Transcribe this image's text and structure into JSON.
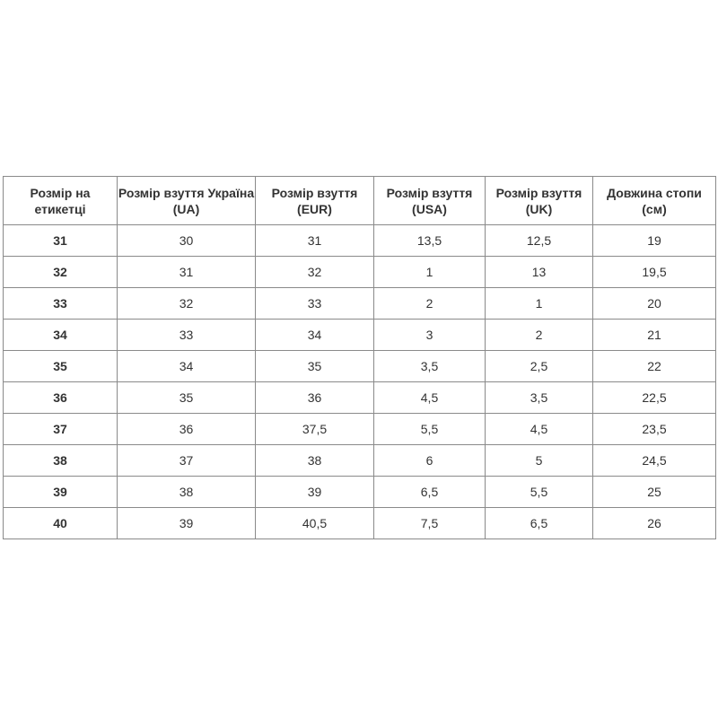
{
  "headers": [
    "Розмір на етикетці",
    "Розмір взуття Україна (UA)",
    "Розмір взуття (EUR)",
    "Розмір взуття (USA)",
    "Розмір взуття (UK)",
    "Довжина стопи (см)"
  ],
  "rows": [
    [
      "31",
      "30",
      "31",
      "13,5",
      "12,5",
      "19"
    ],
    [
      "32",
      "31",
      "32",
      "1",
      "13",
      "19,5"
    ],
    [
      "33",
      "32",
      "33",
      "2",
      "1",
      "20"
    ],
    [
      "34",
      "33",
      "34",
      "3",
      "2",
      "21"
    ],
    [
      "35",
      "34",
      "35",
      "3,5",
      "2,5",
      "22"
    ],
    [
      "36",
      "35",
      "36",
      "4,5",
      "3,5",
      "22,5"
    ],
    [
      "37",
      "36",
      "37,5",
      "5,5",
      "4,5",
      "23,5"
    ],
    [
      "38",
      "37",
      "38",
      "6",
      "5",
      "24,5"
    ],
    [
      "39",
      "38",
      "39",
      "6,5",
      "5,5",
      "25"
    ],
    [
      "40",
      "39",
      "40,5",
      "7,5",
      "6,5",
      "26"
    ]
  ]
}
